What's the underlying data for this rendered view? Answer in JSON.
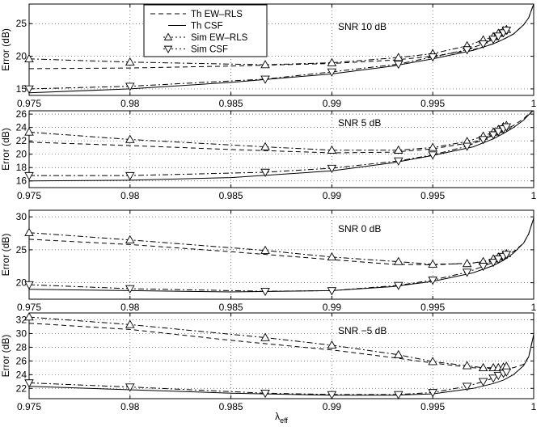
{
  "figure": {
    "xlabel_main": "λ",
    "xlabel_sub": "eff",
    "legend": [
      {
        "label": "Th EW–RLS",
        "style": "dashed",
        "marker": "none"
      },
      {
        "label": "Th CSF",
        "style": "solid",
        "marker": "none"
      },
      {
        "label": "Sim EW–RLS",
        "style": "dashdot",
        "marker": "triangle-up"
      },
      {
        "label": "Sim CSF",
        "style": "dashdot",
        "marker": "triangle-down"
      }
    ]
  },
  "chart_data": [
    {
      "type": "line",
      "annotation": "SNR 10 dB",
      "xlabel": "",
      "ylabel": "Error (dB)",
      "xlim": [
        0.975,
        1.0
      ],
      "ylim": [
        14,
        28
      ],
      "xticks": [
        0.975,
        0.98,
        0.985,
        0.99,
        0.995,
        1
      ],
      "xticklabels": [
        "0.975",
        "0.98",
        "0.985",
        "0.99",
        "0.995",
        "1"
      ],
      "yticks": [
        15,
        20,
        25
      ],
      "grid": true,
      "series": [
        {
          "name": "Th EW-RLS",
          "style": "dashed",
          "x": [
            0.975,
            0.98,
            0.985,
            0.99,
            0.993,
            0.995,
            0.997,
            0.998,
            0.9985,
            0.999,
            0.9995,
            0.99975,
            1.0
          ],
          "y": [
            18.1,
            18.2,
            18.5,
            18.9,
            19.4,
            20.0,
            21.0,
            21.9,
            22.6,
            23.4,
            24.8,
            25.9,
            28.0
          ]
        },
        {
          "name": "Th CSF",
          "style": "solid",
          "x": [
            0.975,
            0.98,
            0.985,
            0.99,
            0.993,
            0.995,
            0.997,
            0.998,
            0.9985,
            0.999,
            0.9995,
            0.99975,
            1.0
          ],
          "y": [
            14.4,
            15.0,
            16.0,
            17.3,
            18.5,
            19.6,
            20.9,
            21.9,
            22.6,
            23.4,
            24.8,
            25.9,
            28.0
          ]
        },
        {
          "name": "Sim EW-RLS",
          "style": "dashdot",
          "marker": "triangle-up",
          "x": [
            0.975,
            0.98,
            0.9867,
            0.99,
            0.9933,
            0.995,
            0.9967,
            0.9975,
            0.998,
            0.99825,
            0.9985,
            0.99865
          ],
          "y": [
            19.6,
            19.1,
            18.7,
            19.0,
            19.8,
            20.4,
            21.6,
            22.5,
            23.0,
            23.5,
            23.9,
            24.1
          ]
        },
        {
          "name": "Sim CSF",
          "style": "dashdot",
          "marker": "triangle-down",
          "x": [
            0.975,
            0.98,
            0.9867,
            0.99,
            0.9933,
            0.995,
            0.9967,
            0.9975,
            0.998,
            0.99825,
            0.9985,
            0.99865
          ],
          "y": [
            15.0,
            15.4,
            16.5,
            17.6,
            18.8,
            19.9,
            21.0,
            21.9,
            22.6,
            23.1,
            23.6,
            24.0
          ]
        }
      ]
    },
    {
      "type": "line",
      "annotation": "SNR 5  dB",
      "xlabel": "",
      "ylabel": "Error (dB)",
      "xlim": [
        0.975,
        1.0
      ],
      "ylim": [
        15,
        26.5
      ],
      "xticks": [
        0.975,
        0.98,
        0.985,
        0.99,
        0.995,
        1
      ],
      "xticklabels": [
        "0.975",
        "0.98",
        "0.985",
        "0.99",
        "0.995",
        "1"
      ],
      "yticks": [
        16,
        18,
        20,
        22,
        24,
        26
      ],
      "grid": true,
      "series": [
        {
          "name": "Th EW-RLS",
          "style": "dashed",
          "x": [
            0.975,
            0.98,
            0.985,
            0.99,
            0.993,
            0.995,
            0.997,
            0.998,
            0.9985,
            0.999,
            0.9995,
            0.99975,
            1.0
          ],
          "y": [
            21.8,
            21.3,
            20.7,
            20.2,
            20.3,
            20.8,
            21.8,
            22.8,
            23.5,
            24.3,
            25.3,
            26.0,
            26.6
          ]
        },
        {
          "name": "Th CSF",
          "style": "solid",
          "x": [
            0.975,
            0.98,
            0.985,
            0.99,
            0.993,
            0.995,
            0.997,
            0.998,
            0.9985,
            0.999,
            0.9995,
            0.99975,
            1.0
          ],
          "y": [
            16.0,
            16.1,
            16.5,
            17.5,
            18.7,
            19.8,
            21.1,
            22.3,
            23.1,
            24.0,
            25.1,
            25.9,
            26.6
          ]
        },
        {
          "name": "Sim EW-RLS",
          "style": "dashdot",
          "marker": "triangle-up",
          "x": [
            0.975,
            0.98,
            0.9867,
            0.99,
            0.9933,
            0.995,
            0.9967,
            0.9975,
            0.998,
            0.99825,
            0.9985,
            0.99865
          ],
          "y": [
            23.3,
            22.2,
            21.1,
            20.6,
            20.6,
            21.0,
            21.9,
            22.7,
            23.3,
            23.7,
            24.1,
            24.3
          ]
        },
        {
          "name": "Sim CSF",
          "style": "dashdot",
          "marker": "triangle-down",
          "x": [
            0.975,
            0.98,
            0.9867,
            0.99,
            0.9933,
            0.995,
            0.9967,
            0.9975,
            0.998,
            0.99825,
            0.9985,
            0.99865
          ],
          "y": [
            16.8,
            16.8,
            17.3,
            17.9,
            19.0,
            19.9,
            21.2,
            22.2,
            22.9,
            23.4,
            23.8,
            24.1
          ]
        }
      ]
    },
    {
      "type": "line",
      "annotation": "SNR 0  dB",
      "xlabel": "",
      "ylabel": "Error (dB)",
      "xlim": [
        0.975,
        1.0
      ],
      "ylim": [
        17.5,
        31
      ],
      "xticks": [
        0.975,
        0.98,
        0.985,
        0.99,
        0.995,
        1
      ],
      "xticklabels": [
        "0.975",
        "0.98",
        "0.985",
        "0.99",
        "0.995",
        "1"
      ],
      "yticks": [
        20,
        25,
        30
      ],
      "grid": true,
      "series": [
        {
          "name": "Th EW-RLS",
          "style": "dashed",
          "x": [
            0.975,
            0.98,
            0.985,
            0.99,
            0.993,
            0.995,
            0.997,
            0.998,
            0.9985,
            0.999,
            0.9995,
            0.99975,
            1.0
          ],
          "y": [
            26.6,
            25.8,
            24.7,
            23.5,
            22.8,
            22.7,
            23.0,
            23.5,
            24.0,
            24.7,
            26.0,
            27.4,
            29.8
          ]
        },
        {
          "name": "Th CSF",
          "style": "solid",
          "x": [
            0.975,
            0.98,
            0.985,
            0.99,
            0.993,
            0.995,
            0.997,
            0.998,
            0.9985,
            0.999,
            0.9995,
            0.99975,
            1.0
          ],
          "y": [
            19.0,
            18.8,
            18.6,
            18.8,
            19.4,
            20.2,
            21.5,
            22.6,
            23.4,
            24.5,
            26.0,
            27.4,
            29.8
          ]
        },
        {
          "name": "Sim EW-RLS",
          "style": "dashdot",
          "marker": "triangle-up",
          "x": [
            0.975,
            0.98,
            0.9867,
            0.99,
            0.9933,
            0.995,
            0.9967,
            0.9975,
            0.998,
            0.99825,
            0.9985,
            0.99865
          ],
          "y": [
            27.6,
            26.5,
            24.9,
            23.9,
            23.2,
            22.8,
            22.9,
            23.2,
            23.6,
            23.9,
            24.2,
            24.4
          ]
        },
        {
          "name": "Sim CSF",
          "style": "dashdot",
          "marker": "triangle-down",
          "x": [
            0.975,
            0.98,
            0.9867,
            0.99,
            0.9933,
            0.995,
            0.9967,
            0.9975,
            0.998,
            0.99825,
            0.9985,
            0.99865
          ],
          "y": [
            19.7,
            19.1,
            18.7,
            18.8,
            19.6,
            20.4,
            21.6,
            22.5,
            23.1,
            23.6,
            24.0,
            24.3
          ]
        }
      ]
    },
    {
      "type": "line",
      "annotation": "SNR −5 dB",
      "xlabel": "λ eff",
      "ylabel": "Error (dB)",
      "xlim": [
        0.975,
        1.0
      ],
      "ylim": [
        20.5,
        33
      ],
      "xticks": [
        0.975,
        0.98,
        0.985,
        0.99,
        0.995,
        1
      ],
      "xticklabels": [
        "0.975",
        "0.98",
        "0.985",
        "0.99",
        "0.995",
        "1"
      ],
      "yticks": [
        22,
        24,
        26,
        28,
        30,
        32
      ],
      "grid": true,
      "series": [
        {
          "name": "Th EW-RLS",
          "style": "dashed",
          "x": [
            0.975,
            0.98,
            0.985,
            0.99,
            0.993,
            0.995,
            0.997,
            0.998,
            0.9985,
            0.999,
            0.9995,
            0.99975,
            1.0
          ],
          "y": [
            31.5,
            30.6,
            29.0,
            27.6,
            26.5,
            25.7,
            25.0,
            24.9,
            24.9,
            25.0,
            25.5,
            26.6,
            29.8
          ]
        },
        {
          "name": "Th CSF",
          "style": "solid",
          "x": [
            0.975,
            0.98,
            0.985,
            0.99,
            0.993,
            0.995,
            0.997,
            0.998,
            0.9985,
            0.999,
            0.9995,
            0.99975,
            1.0
          ],
          "y": [
            22.3,
            21.8,
            21.3,
            21.0,
            21.0,
            21.2,
            22.0,
            22.7,
            23.2,
            24.0,
            25.3,
            26.6,
            29.8
          ]
        },
        {
          "name": "Sim EW-RLS",
          "style": "dashdot",
          "marker": "triangle-up",
          "x": [
            0.975,
            0.98,
            0.9867,
            0.99,
            0.9933,
            0.995,
            0.9967,
            0.9975,
            0.998,
            0.99825,
            0.9985,
            0.99865
          ],
          "y": [
            32.4,
            31.3,
            29.4,
            28.3,
            26.9,
            25.9,
            25.3,
            25.0,
            25.0,
            25.0,
            25.1,
            25.2
          ]
        },
        {
          "name": "Sim CSF",
          "style": "dashdot",
          "marker": "triangle-down",
          "x": [
            0.975,
            0.98,
            0.9867,
            0.99,
            0.9933,
            0.995,
            0.9967,
            0.9975,
            0.998,
            0.99825,
            0.9985,
            0.99865
          ],
          "y": [
            22.8,
            22.2,
            21.3,
            21.1,
            21.1,
            21.4,
            22.3,
            23.0,
            23.5,
            23.9,
            24.2,
            24.4
          ]
        }
      ]
    }
  ]
}
